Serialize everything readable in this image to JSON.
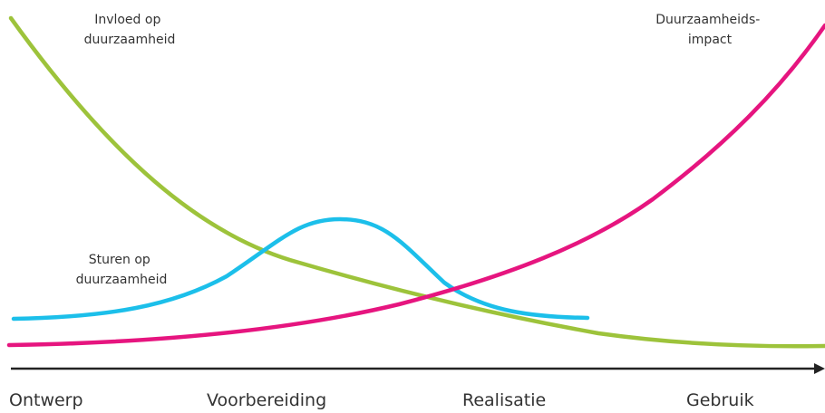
{
  "diagram": {
    "curves": [
      {
        "name": "influence",
        "label_lines": [
          "Invloed op",
          "duurzaamheid"
        ],
        "color": "#9dc33b"
      },
      {
        "name": "steering",
        "label_lines": [
          "Sturen op",
          "duurzaamheid"
        ],
        "color": "#1cbfea"
      },
      {
        "name": "impact",
        "label_lines": [
          "Duurzaamheids-",
          "impact"
        ],
        "color": "#e6157f"
      }
    ],
    "phases": [
      "Ontwerp",
      "Voorbereiding",
      "Realisatie",
      "Gebruik"
    ],
    "axis_color": "#222222"
  }
}
